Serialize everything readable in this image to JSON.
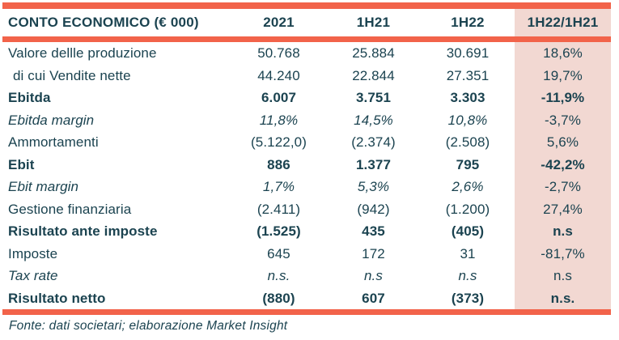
{
  "colors": {
    "accent_orange": "#F2634A",
    "highlight_pink": "#F2D8D2",
    "text_teal": "#1B4350"
  },
  "table": {
    "title": "CONTO ECONOMICO (€ 000)",
    "columns": [
      "2021",
      "1H21",
      "1H22",
      "1H22/1H21"
    ],
    "rows": [
      {
        "label": "Valore dellle produzione",
        "values": [
          "50.768",
          "25.884",
          "30.691",
          "18,6%"
        ]
      },
      {
        "label": "di cui Vendite nette",
        "values": [
          "44.240",
          "22.844",
          "27.351",
          "19,7%"
        ]
      },
      {
        "label": "Ebitda",
        "values": [
          "6.007",
          "3.751",
          "3.303",
          "-11,9%"
        ]
      },
      {
        "label": "Ebitda margin",
        "values": [
          "11,8%",
          "14,5%",
          "10,8%",
          "-3,7%"
        ]
      },
      {
        "label": "Ammortamenti",
        "values": [
          "(5.122,0)",
          "(2.374)",
          "(2.508)",
          "5,6%"
        ]
      },
      {
        "label": "Ebit",
        "values": [
          "886",
          "1.377",
          "795",
          "-42,2%"
        ]
      },
      {
        "label": "Ebit margin",
        "values": [
          "1,7%",
          "5,3%",
          "2,6%",
          "-2,7%"
        ]
      },
      {
        "label": "Gestione finanziaria",
        "values": [
          "(2.411)",
          "(942)",
          "(1.200)",
          "27,4%"
        ]
      },
      {
        "label": "Risultato ante imposte",
        "values": [
          "(1.525)",
          "435",
          "(405)",
          "n.s"
        ]
      },
      {
        "label": "Imposte",
        "values": [
          "645",
          "172",
          "31",
          "-81,7%"
        ]
      },
      {
        "label": "Tax rate",
        "values": [
          "n.s.",
          "n.s",
          "n.s",
          "n.s"
        ]
      },
      {
        "label": "Risultato netto",
        "values": [
          "(880)",
          "607",
          "(373)",
          "n.s."
        ]
      }
    ],
    "footer": "Fonte: dati societari; elaborazione Market Insight"
  }
}
